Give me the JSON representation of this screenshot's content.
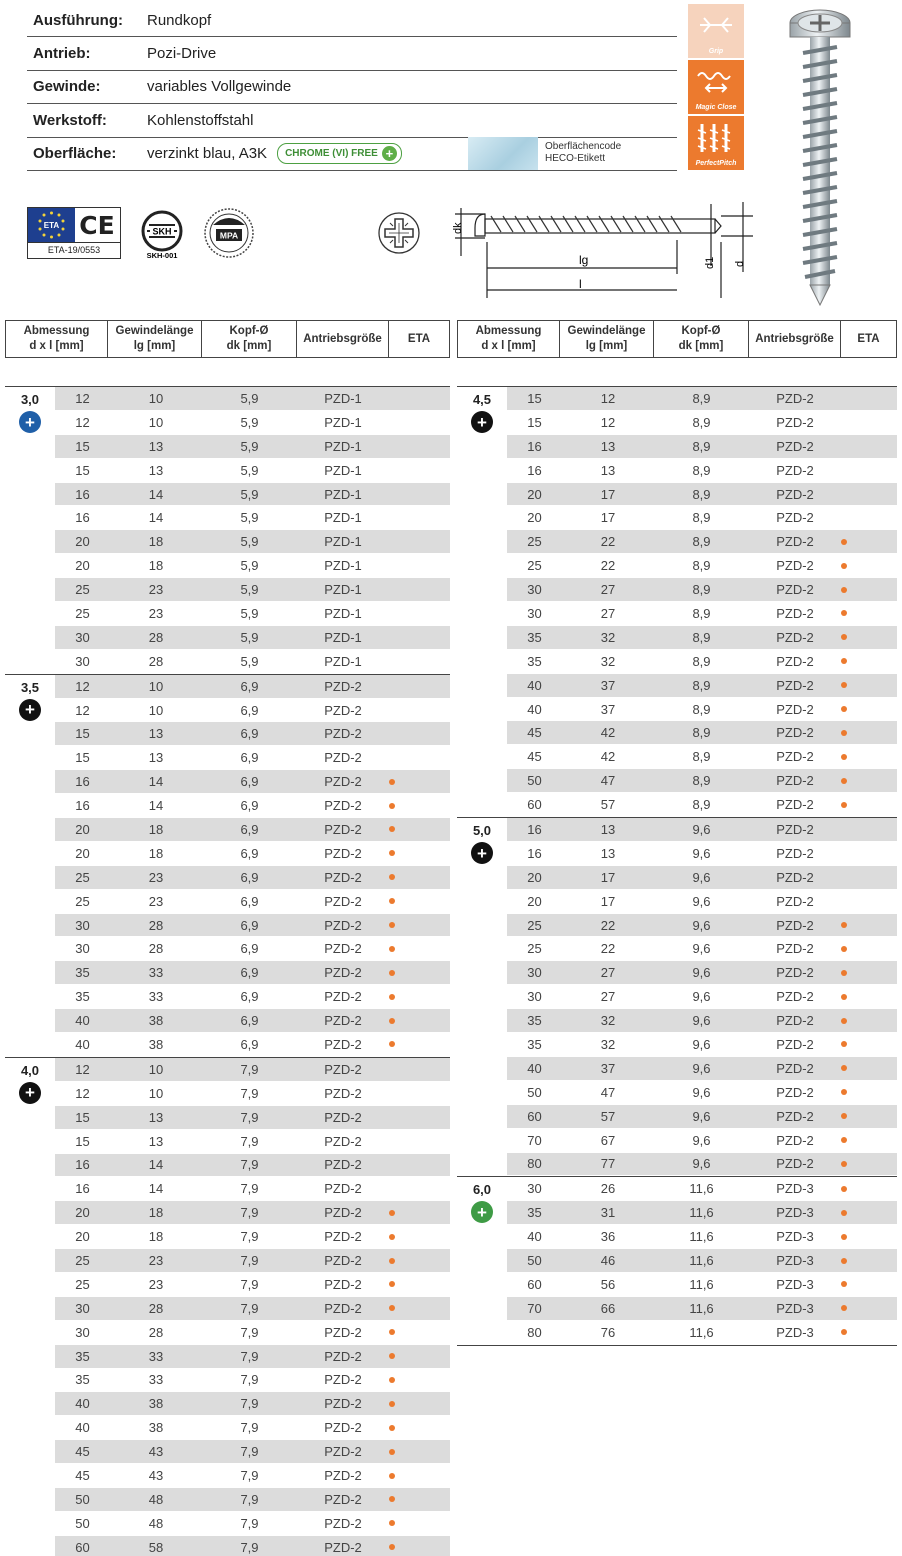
{
  "specs": [
    {
      "key": "Ausführung:",
      "value": "Rundkopf"
    },
    {
      "key": "Antrieb:",
      "value": "Pozi-Drive"
    },
    {
      "key": "Gewinde:",
      "value": "variables Vollgewinde"
    },
    {
      "key": "Werkstoff:",
      "value": "Kohlenstoffstahl"
    },
    {
      "key": "Oberfläche:",
      "value": "verzinkt blau, A3K"
    }
  ],
  "chrome_badge": "CHROME (VI) FREE",
  "surface_code": {
    "line1": "Oberflächencode",
    "line2": "HECO-Etikett"
  },
  "features": [
    "Grip",
    "Magic Close",
    "PerfectPitch"
  ],
  "certs": {
    "eta_number": "ETA-19/0553",
    "ce": "CE",
    "eta": "ETA",
    "skh": "SKH",
    "skh_number": "SKH-001",
    "mpa": "MPA"
  },
  "drawing": {
    "dk": "dk",
    "lg": "lg",
    "l": "l",
    "d1": "d1",
    "d": "d"
  },
  "table_headers": [
    "Abmessung\nd x l [mm]",
    "Gewindelänge\nlg [mm]",
    "Kopf-Ø\ndk [mm]",
    "Antriebsgröße",
    "ETA"
  ],
  "colors": {
    "accent": "#ec7a2e",
    "blue_icon": "#1f5fa8",
    "black_icon": "#111111",
    "green_icon": "#3e9b45",
    "shade": "#dcdcdc"
  },
  "groups_left": [
    {
      "size": "3,0",
      "icon_color": "#1f5fa8",
      "rows": [
        [
          "12",
          "10",
          "5,9",
          "PZD-1",
          false
        ],
        [
          "12",
          "10",
          "5,9",
          "PZD-1",
          false
        ],
        [
          "15",
          "13",
          "5,9",
          "PZD-1",
          false
        ],
        [
          "15",
          "13",
          "5,9",
          "PZD-1",
          false
        ],
        [
          "16",
          "14",
          "5,9",
          "PZD-1",
          false
        ],
        [
          "16",
          "14",
          "5,9",
          "PZD-1",
          false
        ],
        [
          "20",
          "18",
          "5,9",
          "PZD-1",
          false
        ],
        [
          "20",
          "18",
          "5,9",
          "PZD-1",
          false
        ],
        [
          "25",
          "23",
          "5,9",
          "PZD-1",
          false
        ],
        [
          "25",
          "23",
          "5,9",
          "PZD-1",
          false
        ],
        [
          "30",
          "28",
          "5,9",
          "PZD-1",
          false
        ],
        [
          "30",
          "28",
          "5,9",
          "PZD-1",
          false
        ]
      ]
    },
    {
      "size": "3,5",
      "icon_color": "#111111",
      "rows": [
        [
          "12",
          "10",
          "6,9",
          "PZD-2",
          false
        ],
        [
          "12",
          "10",
          "6,9",
          "PZD-2",
          false
        ],
        [
          "15",
          "13",
          "6,9",
          "PZD-2",
          false
        ],
        [
          "15",
          "13",
          "6,9",
          "PZD-2",
          false
        ],
        [
          "16",
          "14",
          "6,9",
          "PZD-2",
          true
        ],
        [
          "16",
          "14",
          "6,9",
          "PZD-2",
          true
        ],
        [
          "20",
          "18",
          "6,9",
          "PZD-2",
          true
        ],
        [
          "20",
          "18",
          "6,9",
          "PZD-2",
          true
        ],
        [
          "25",
          "23",
          "6,9",
          "PZD-2",
          true
        ],
        [
          "25",
          "23",
          "6,9",
          "PZD-2",
          true
        ],
        [
          "30",
          "28",
          "6,9",
          "PZD-2",
          true
        ],
        [
          "30",
          "28",
          "6,9",
          "PZD-2",
          true
        ],
        [
          "35",
          "33",
          "6,9",
          "PZD-2",
          true
        ],
        [
          "35",
          "33",
          "6,9",
          "PZD-2",
          true
        ],
        [
          "40",
          "38",
          "6,9",
          "PZD-2",
          true
        ],
        [
          "40",
          "38",
          "6,9",
          "PZD-2",
          true
        ]
      ]
    },
    {
      "size": "4,0",
      "icon_color": "#111111",
      "rows": [
        [
          "12",
          "10",
          "7,9",
          "PZD-2",
          false
        ],
        [
          "12",
          "10",
          "7,9",
          "PZD-2",
          false
        ],
        [
          "15",
          "13",
          "7,9",
          "PZD-2",
          false
        ],
        [
          "15",
          "13",
          "7,9",
          "PZD-2",
          false
        ],
        [
          "16",
          "14",
          "7,9",
          "PZD-2",
          false
        ],
        [
          "16",
          "14",
          "7,9",
          "PZD-2",
          false
        ],
        [
          "20",
          "18",
          "7,9",
          "PZD-2",
          true
        ],
        [
          "20",
          "18",
          "7,9",
          "PZD-2",
          true
        ],
        [
          "25",
          "23",
          "7,9",
          "PZD-2",
          true
        ],
        [
          "25",
          "23",
          "7,9",
          "PZD-2",
          true
        ],
        [
          "30",
          "28",
          "7,9",
          "PZD-2",
          true
        ],
        [
          "30",
          "28",
          "7,9",
          "PZD-2",
          true
        ],
        [
          "35",
          "33",
          "7,9",
          "PZD-2",
          true
        ],
        [
          "35",
          "33",
          "7,9",
          "PZD-2",
          true
        ],
        [
          "40",
          "38",
          "7,9",
          "PZD-2",
          true
        ],
        [
          "40",
          "38",
          "7,9",
          "PZD-2",
          true
        ],
        [
          "45",
          "43",
          "7,9",
          "PZD-2",
          true
        ],
        [
          "45",
          "43",
          "7,9",
          "PZD-2",
          true
        ],
        [
          "50",
          "48",
          "7,9",
          "PZD-2",
          true
        ],
        [
          "50",
          "48",
          "7,9",
          "PZD-2",
          true
        ],
        [
          "60",
          "58",
          "7,9",
          "PZD-2",
          true
        ]
      ]
    }
  ],
  "groups_right": [
    {
      "size": "4,5",
      "icon_color": "#111111",
      "rows": [
        [
          "15",
          "12",
          "8,9",
          "PZD-2",
          false
        ],
        [
          "15",
          "12",
          "8,9",
          "PZD-2",
          false
        ],
        [
          "16",
          "13",
          "8,9",
          "PZD-2",
          false
        ],
        [
          "16",
          "13",
          "8,9",
          "PZD-2",
          false
        ],
        [
          "20",
          "17",
          "8,9",
          "PZD-2",
          false
        ],
        [
          "20",
          "17",
          "8,9",
          "PZD-2",
          false
        ],
        [
          "25",
          "22",
          "8,9",
          "PZD-2",
          true
        ],
        [
          "25",
          "22",
          "8,9",
          "PZD-2",
          true
        ],
        [
          "30",
          "27",
          "8,9",
          "PZD-2",
          true
        ],
        [
          "30",
          "27",
          "8,9",
          "PZD-2",
          true
        ],
        [
          "35",
          "32",
          "8,9",
          "PZD-2",
          true
        ],
        [
          "35",
          "32",
          "8,9",
          "PZD-2",
          true
        ],
        [
          "40",
          "37",
          "8,9",
          "PZD-2",
          true
        ],
        [
          "40",
          "37",
          "8,9",
          "PZD-2",
          true
        ],
        [
          "45",
          "42",
          "8,9",
          "PZD-2",
          true
        ],
        [
          "45",
          "42",
          "8,9",
          "PZD-2",
          true
        ],
        [
          "50",
          "47",
          "8,9",
          "PZD-2",
          true
        ],
        [
          "60",
          "57",
          "8,9",
          "PZD-2",
          true
        ]
      ]
    },
    {
      "size": "5,0",
      "icon_color": "#111111",
      "rows": [
        [
          "16",
          "13",
          "9,6",
          "PZD-2",
          false
        ],
        [
          "16",
          "13",
          "9,6",
          "PZD-2",
          false
        ],
        [
          "20",
          "17",
          "9,6",
          "PZD-2",
          false
        ],
        [
          "20",
          "17",
          "9,6",
          "PZD-2",
          false
        ],
        [
          "25",
          "22",
          "9,6",
          "PZD-2",
          true
        ],
        [
          "25",
          "22",
          "9,6",
          "PZD-2",
          true
        ],
        [
          "30",
          "27",
          "9,6",
          "PZD-2",
          true
        ],
        [
          "30",
          "27",
          "9,6",
          "PZD-2",
          true
        ],
        [
          "35",
          "32",
          "9,6",
          "PZD-2",
          true
        ],
        [
          "35",
          "32",
          "9,6",
          "PZD-2",
          true
        ],
        [
          "40",
          "37",
          "9,6",
          "PZD-2",
          true
        ],
        [
          "50",
          "47",
          "9,6",
          "PZD-2",
          true
        ],
        [
          "60",
          "57",
          "9,6",
          "PZD-2",
          true
        ],
        [
          "70",
          "67",
          "9,6",
          "PZD-2",
          true
        ],
        [
          "80",
          "77",
          "9,6",
          "PZD-2",
          true
        ]
      ]
    },
    {
      "size": "6,0",
      "icon_color": "#3e9b45",
      "rows": [
        [
          "30",
          "26",
          "11,6",
          "PZD-3",
          true
        ],
        [
          "35",
          "31",
          "11,6",
          "PZD-3",
          true
        ],
        [
          "40",
          "36",
          "11,6",
          "PZD-3",
          true
        ],
        [
          "50",
          "46",
          "11,6",
          "PZD-3",
          true
        ],
        [
          "60",
          "56",
          "11,6",
          "PZD-3",
          true
        ],
        [
          "70",
          "66",
          "11,6",
          "PZD-3",
          true
        ],
        [
          "80",
          "76",
          "11,6",
          "PZD-3",
          true
        ]
      ]
    }
  ]
}
